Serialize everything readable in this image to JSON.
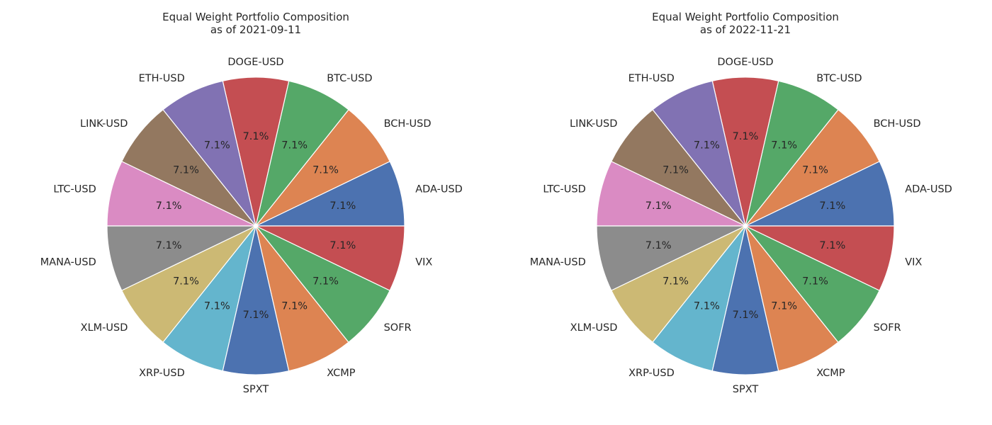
{
  "chart_data": [
    {
      "type": "pie",
      "title": "Equal Weight Portfolio Composition",
      "subtitle": "as of 2021-09-11",
      "categories": [
        "ADA-USD",
        "BCH-USD",
        "BTC-USD",
        "DOGE-USD",
        "ETH-USD",
        "LINK-USD",
        "LTC-USD",
        "MANA-USD",
        "XLM-USD",
        "XRP-USD",
        "SPXT",
        "XCMP",
        "SOFR",
        "VIX"
      ],
      "values": [
        7.1,
        7.1,
        7.1,
        7.1,
        7.1,
        7.1,
        7.1,
        7.1,
        7.1,
        7.1,
        7.1,
        7.1,
        7.1,
        7.1
      ],
      "value_labels": [
        "7.1%",
        "7.1%",
        "7.1%",
        "7.1%",
        "7.1%",
        "7.1%",
        "7.1%",
        "7.1%",
        "7.1%",
        "7.1%",
        "7.1%",
        "7.1%",
        "7.1%",
        "7.1%"
      ],
      "colors": [
        "#4c72b0",
        "#dd8452",
        "#55a868",
        "#c44e52",
        "#8172b3",
        "#937860",
        "#da8bc3",
        "#8c8c8c",
        "#ccb974",
        "#64b5cd",
        "#4c72b0",
        "#dd8452",
        "#55a868",
        "#c44e52"
      ],
      "start_angle_deg": 0,
      "direction": "counterclockwise",
      "legend": "none"
    },
    {
      "type": "pie",
      "title": "Equal Weight Portfolio Composition",
      "subtitle": "as of 2022-11-21",
      "categories": [
        "ADA-USD",
        "BCH-USD",
        "BTC-USD",
        "DOGE-USD",
        "ETH-USD",
        "LINK-USD",
        "LTC-USD",
        "MANA-USD",
        "XLM-USD",
        "XRP-USD",
        "SPXT",
        "XCMP",
        "SOFR",
        "VIX"
      ],
      "values": [
        7.1,
        7.1,
        7.1,
        7.1,
        7.1,
        7.1,
        7.1,
        7.1,
        7.1,
        7.1,
        7.1,
        7.1,
        7.1,
        7.1
      ],
      "value_labels": [
        "7.1%",
        "7.1%",
        "7.1%",
        "7.1%",
        "7.1%",
        "7.1%",
        "7.1%",
        "7.1%",
        "7.1%",
        "7.1%",
        "7.1%",
        "7.1%",
        "7.1%",
        "7.1%"
      ],
      "colors": [
        "#4c72b0",
        "#dd8452",
        "#55a868",
        "#c44e52",
        "#8172b3",
        "#937860",
        "#da8bc3",
        "#8c8c8c",
        "#ccb974",
        "#64b5cd",
        "#4c72b0",
        "#dd8452",
        "#55a868",
        "#c44e52"
      ],
      "start_angle_deg": 0,
      "direction": "counterclockwise",
      "legend": "none"
    }
  ]
}
